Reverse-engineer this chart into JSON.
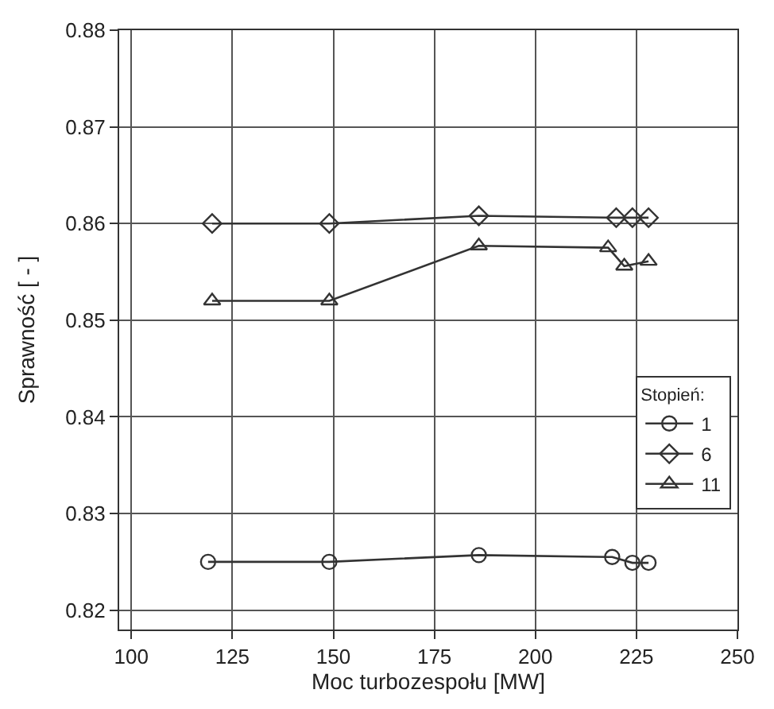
{
  "chart_data": {
    "type": "line",
    "xlabel": "Moc turbozespołu [MW]",
    "ylabel": "Sprawność [ - ]",
    "legend_title": "Stopień:",
    "xlim": [
      97,
      250
    ],
    "xticks": [
      100,
      125,
      150,
      175,
      200,
      225,
      250
    ],
    "ylim": [
      0.818,
      0.88
    ],
    "yticks": [
      0.82,
      0.83,
      0.84,
      0.85,
      0.86,
      0.87,
      0.88
    ],
    "grid": true,
    "legend": "bottom right",
    "line_style": "solid",
    "series": [
      {
        "name": "1",
        "color": "#333333",
        "marker": "circle",
        "x": [
          119,
          149,
          186,
          219,
          224,
          228
        ],
        "values": [
          0.825,
          0.825,
          0.8257,
          0.8255,
          0.8249,
          0.8249
        ]
      },
      {
        "name": "6",
        "color": "#333333",
        "marker": "diamond",
        "x": [
          120,
          149,
          186,
          220,
          224,
          228
        ],
        "values": [
          0.86,
          0.86,
          0.8608,
          0.8606,
          0.8606,
          0.8606
        ]
      },
      {
        "name": "11",
        "color": "#333333",
        "marker": "triangle",
        "x": [
          120,
          149,
          186,
          218,
          222,
          228
        ],
        "values": [
          0.852,
          0.852,
          0.8577,
          0.8575,
          0.8556,
          0.8561
        ]
      }
    ]
  }
}
